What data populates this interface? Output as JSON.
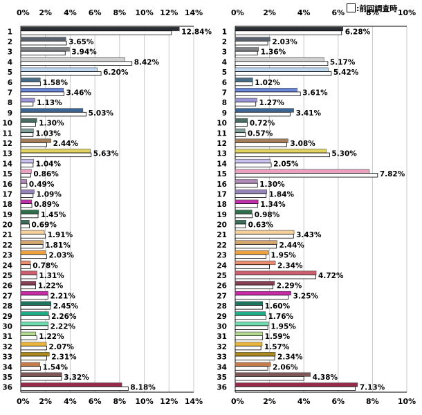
{
  "legend": {
    "label": ":前回調査時"
  },
  "chart_data": [
    {
      "type": "bar",
      "orientation": "horizontal",
      "categories": [
        "1",
        "2",
        "3",
        "4",
        "5",
        "6",
        "7",
        "8",
        "9",
        "10",
        "11",
        "12",
        "13",
        "14",
        "15",
        "16",
        "17",
        "18",
        "19",
        "20",
        "21",
        "22",
        "23",
        "24",
        "25",
        "26",
        "27",
        "28",
        "29",
        "30",
        "31",
        "32",
        "33",
        "34",
        "35",
        "36"
      ],
      "series": [
        {
          "values": [
            12.84,
            3.65,
            3.94,
            8.42,
            6.2,
            1.58,
            3.46,
            1.13,
            5.03,
            1.3,
            1.03,
            2.44,
            5.63,
            1.04,
            0.86,
            0.49,
            1.09,
            0.89,
            1.45,
            0.69,
            1.91,
            1.81,
            2.03,
            0.78,
            1.31,
            1.22,
            2.21,
            2.45,
            2.26,
            2.22,
            1.22,
            2.07,
            2.31,
            1.54,
            3.32,
            8.18
          ]
        },
        {
          "name": "前回調査時",
          "values": [
            12.2,
            3.7,
            3.6,
            9.0,
            6.5,
            1.6,
            3.5,
            1.0,
            5.3,
            1.2,
            1.0,
            2.1,
            5.7,
            1.0,
            0.8,
            0.5,
            1.0,
            0.9,
            1.4,
            0.7,
            2.0,
            1.8,
            2.1,
            0.8,
            1.3,
            1.2,
            2.2,
            2.4,
            2.3,
            2.2,
            1.3,
            2.1,
            2.1,
            1.6,
            3.3,
            8.7
          ]
        }
      ],
      "data_labels": [
        "12.84%",
        "3.65%",
        "3.94%",
        "8.42%",
        "6.20%",
        "1.58%",
        "3.46%",
        "1.13%",
        "5.03%",
        "1.30%",
        "1.03%",
        "2.44%",
        "5.63%",
        "1.04%",
        "0.86%",
        "0.49%",
        "1.09%",
        "0.89%",
        "1.45%",
        "0.69%",
        "1.91%",
        "1.81%",
        "2.03%",
        "0.78%",
        "1.31%",
        "1.22%",
        "2.21%",
        "2.45%",
        "2.26%",
        "2.22%",
        "1.22%",
        "2.07%",
        "2.31%",
        "1.54%",
        "3.32%",
        "8.18%"
      ],
      "xticks": [
        "0%",
        "2%",
        "4%",
        "6%",
        "8%",
        "10%",
        "12%",
        "14%"
      ],
      "xlim": [
        0,
        14
      ],
      "grid": true
    },
    {
      "type": "bar",
      "orientation": "horizontal",
      "categories": [
        "1",
        "2",
        "3",
        "4",
        "5",
        "6",
        "7",
        "8",
        "9",
        "10",
        "11",
        "12",
        "13",
        "14",
        "15",
        "16",
        "17",
        "18",
        "19",
        "20",
        "21",
        "22",
        "23",
        "24",
        "25",
        "26",
        "27",
        "28",
        "29",
        "30",
        "31",
        "32",
        "33",
        "34",
        "35",
        "36"
      ],
      "series": [
        {
          "values": [
            6.28,
            2.03,
            1.36,
            5.17,
            5.42,
            1.02,
            3.61,
            1.27,
            3.41,
            0.72,
            0.57,
            3.08,
            5.3,
            2.05,
            7.82,
            1.3,
            1.84,
            1.34,
            0.98,
            0.63,
            3.43,
            2.44,
            1.95,
            2.34,
            4.72,
            2.29,
            3.25,
            1.6,
            1.76,
            1.95,
            1.59,
            1.57,
            2.34,
            2.06,
            4.38,
            7.13
          ]
        },
        {
          "name": "前回調査時",
          "values": [
            6.2,
            1.9,
            1.3,
            5.4,
            5.6,
            1.0,
            3.8,
            1.2,
            3.2,
            0.7,
            0.6,
            3.0,
            5.5,
            2.1,
            8.3,
            1.3,
            1.8,
            1.3,
            1.0,
            0.6,
            3.4,
            2.4,
            1.8,
            2.0,
            4.7,
            2.2,
            3.1,
            1.6,
            1.8,
            1.9,
            1.6,
            1.5,
            2.3,
            1.9,
            4.0,
            7.0
          ]
        }
      ],
      "data_labels": [
        "6.28%",
        "2.03%",
        "1.36%",
        "5.17%",
        "5.42%",
        "1.02%",
        "3.61%",
        "1.27%",
        "3.41%",
        "0.72%",
        "0.57%",
        "3.08%",
        "5.30%",
        "2.05%",
        "7.82%",
        "1.30%",
        "1.84%",
        "1.34%",
        "0.98%",
        "0.63%",
        "3.43%",
        "2.44%",
        "1.95%",
        "2.34%",
        "4.72%",
        "2.29%",
        "3.25%",
        "1.60%",
        "1.76%",
        "1.95%",
        "1.59%",
        "1.57%",
        "2.34%",
        "2.06%",
        "4.38%",
        "7.13%"
      ],
      "xticks": [
        "0%",
        "2%",
        "4%",
        "6%",
        "8%",
        "10%"
      ],
      "xlim": [
        0,
        10
      ],
      "grid": true
    }
  ],
  "colors": {
    "current": [
      "#2b2e34",
      "#5a6270",
      "#7f8287",
      "#d0d0d0",
      "#bdd8f0",
      "#4a6e88",
      "#6b86d6",
      "#9b96d8",
      "#3c6594",
      "#4a6d66",
      "#7f9d98",
      "#a37e5a",
      "#e0d35e",
      "#c9c0ec",
      "#eaa0bf",
      "#b08ab8",
      "#9683b8",
      "#c030a8",
      "#2e6e4a",
      "#3c6e5a",
      "#f5d098",
      "#d4a86a",
      "#eea03e",
      "#ea8e72",
      "#cc6070",
      "#8a4054",
      "#c82aa8",
      "#1d7560",
      "#1fae88",
      "#6fdcb0",
      "#b2d892",
      "#e8b43e",
      "#aa8a1c",
      "#c77a4a",
      "#7e5858",
      "#962a4a"
    ],
    "previous": "#ffffff"
  }
}
